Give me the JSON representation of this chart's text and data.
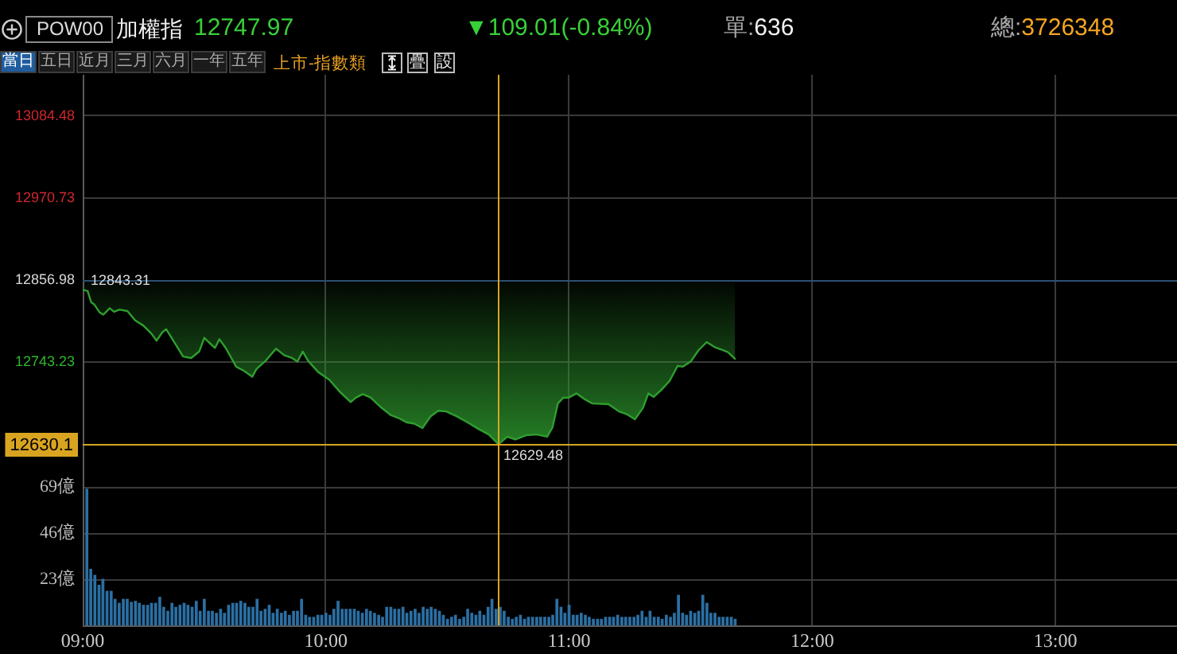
{
  "chart_data": [
    {
      "type": "other",
      "title": "加權指",
      "annotations": [
        "POW00",
        "12747.97",
        "▼109.01(-0.84%)",
        "單:636",
        "總:3726348",
        "當日",
        "五日",
        "近月",
        "三月",
        "六月",
        "一年",
        "五年",
        "上市-指數類",
        "疊",
        "設"
      ]
    },
    {
      "type": "line",
      "x": [
        9,
        9.02,
        9.035,
        9.048,
        9.07,
        9.085,
        9.111,
        9.129,
        9.151,
        9.184,
        9.216,
        9.249,
        9.282,
        9.304,
        9.326,
        9.343,
        9.369,
        9.413,
        9.446,
        9.479,
        9.5,
        9.518,
        9.544,
        9.562,
        9.588,
        9.631,
        9.664,
        9.697,
        9.715,
        9.752,
        9.795,
        9.828,
        9.861,
        9.883,
        9.905,
        9.927,
        9.97,
        10.014,
        10.058,
        10.102,
        10.123,
        10.152,
        10.185,
        10.222,
        10.266,
        10.298,
        10.331,
        10.364,
        10.397,
        10.43,
        10.462,
        10.495,
        10.539,
        10.582,
        10.626,
        10.67,
        10.71,
        10.746,
        10.779,
        10.823,
        10.867,
        10.91,
        10.932,
        10.954,
        10.976,
        10.998,
        11.031,
        11.064,
        11.096,
        11.162,
        11.205,
        11.238,
        11.271,
        11.304,
        11.326,
        11.348,
        11.38,
        11.413,
        11.446,
        11.468,
        11.5,
        11.533,
        11.566,
        11.599,
        11.631,
        11.653,
        11.682
      ],
      "series": [
        {
          "color": "#2f9e2f",
          "values": [
            12843.31,
            12842,
            12826,
            12823,
            12812,
            12809,
            12818,
            12813,
            12816,
            12814,
            12801,
            12794,
            12783,
            12773,
            12784,
            12789,
            12775,
            12751,
            12749,
            12758,
            12777,
            12771,
            12763,
            12775,
            12763,
            12737,
            12731,
            12723,
            12734,
            12745,
            12762,
            12753,
            12749,
            12744,
            12758,
            12745,
            12729,
            12719,
            12702,
            12688,
            12694,
            12699,
            12694,
            12682,
            12670,
            12666,
            12660,
            12658,
            12652,
            12668,
            12676,
            12675,
            12668,
            12660,
            12651,
            12643,
            12629.48,
            12640,
            12636,
            12642,
            12643,
            12640,
            12653,
            12686,
            12694,
            12694,
            12700,
            12692,
            12686,
            12685,
            12675,
            12671,
            12664,
            12680,
            12700,
            12695,
            12705,
            12717,
            12738,
            12737,
            12744,
            12760,
            12771,
            12764,
            12760,
            12757,
            12747.97
          ],
          "lower": [
            12843.31,
            12842,
            12826,
            12823,
            12812,
            12809,
            12818,
            12813,
            12816,
            12814,
            12801,
            12794,
            12783,
            12773,
            12784,
            12789,
            12775,
            12751,
            12749,
            12758,
            12777,
            12771,
            12763,
            12775,
            12763,
            12737,
            12731,
            12723,
            12734,
            12745,
            12762,
            12753,
            12749,
            12744,
            12758,
            12745,
            12729,
            12719,
            12702,
            12688,
            12694,
            12699,
            12694,
            12682,
            12670,
            12666,
            12660,
            12658,
            12652,
            12668,
            12676,
            12675,
            12668,
            12660,
            12651,
            12643,
            12629.48,
            12640,
            12636,
            12642,
            12643,
            12640,
            12653,
            12686,
            12694,
            12694,
            12700,
            12692,
            12686,
            12685,
            12675,
            12671,
            12664,
            12680,
            12700,
            12695,
            12705,
            12717,
            12738,
            12737,
            12744,
            12760,
            12771,
            12764,
            12760,
            12757,
            12747.97
          ],
          "upper": [
            12856.98,
            12856.98,
            12856.98,
            12856.98,
            12856.98,
            12856.98,
            12856.98,
            12856.98,
            12856.98,
            12856.98,
            12856.98,
            12856.98,
            12856.98,
            12856.98,
            12856.98,
            12856.98,
            12856.98,
            12856.98,
            12856.98,
            12856.98,
            12856.98,
            12856.98,
            12856.98,
            12856.98,
            12856.98,
            12856.98,
            12856.98,
            12856.98,
            12856.98,
            12856.98,
            12856.98,
            12856.98,
            12856.98,
            12856.98,
            12856.98,
            12856.98,
            12856.98,
            12856.98,
            12856.98,
            12856.98,
            12856.98,
            12856.98,
            12856.98,
            12856.98,
            12856.98,
            12856.98,
            12856.98,
            12856.98,
            12856.98,
            12856.98,
            12856.98,
            12856.98,
            12856.98,
            12856.98,
            12856.98,
            12856.98,
            12856.98,
            12856.98,
            12856.98,
            12856.98,
            12856.98,
            12856.98,
            12856.98,
            12856.98,
            12856.98,
            12856.98,
            12856.98,
            12856.98,
            12856.98,
            12856.98,
            12856.98,
            12856.98,
            12856.98,
            12856.98,
            12856.98,
            12856.98,
            12856.98,
            12856.98,
            12856.98,
            12856.98,
            12856.98,
            12856.98,
            12856.98,
            12856.98,
            12856.98,
            12856.98,
            12856.98
          ]
        }
      ],
      "xlim": [
        9,
        13.5
      ],
      "xticks": [
        9,
        10,
        11,
        12,
        13
      ],
      "ylim": [
        12572.6,
        13141.36
      ],
      "yticks": [
        13084.48,
        12970.73,
        12856.98,
        12743.23
      ],
      "grid": true,
      "tick_labels": "y",
      "ref_lines": [
        {
          "axis": "y",
          "value": 12856.98,
          "color": "#2b4f73"
        },
        {
          "axis": "y",
          "value": 12630.1,
          "label": "12630.1",
          "color": "#d9a521"
        },
        {
          "axis": "x",
          "value": 10.71,
          "color": "#d9a521"
        }
      ],
      "annotations": [
        {
          "text": "12843.31",
          "x": 9,
          "y": 12843.31
        },
        {
          "text": "12629.48",
          "x": 10.71,
          "y": 12629.48
        }
      ]
    },
    {
      "type": "bar",
      "color": "#2b6fa3",
      "x": [
        9.017,
        9.033,
        9.05,
        9.067,
        9.083,
        9.1,
        9.117,
        9.133,
        9.15,
        9.167,
        9.183,
        9.2,
        9.217,
        9.233,
        9.25,
        9.267,
        9.283,
        9.3,
        9.317,
        9.333,
        9.35,
        9.367,
        9.383,
        9.4,
        9.417,
        9.433,
        9.45,
        9.467,
        9.483,
        9.5,
        9.517,
        9.533,
        9.55,
        9.567,
        9.583,
        9.6,
        9.617,
        9.633,
        9.65,
        9.667,
        9.683,
        9.7,
        9.717,
        9.733,
        9.75,
        9.767,
        9.783,
        9.8,
        9.817,
        9.833,
        9.85,
        9.867,
        9.883,
        9.9,
        9.917,
        9.933,
        9.95,
        9.967,
        9.983,
        10,
        10.017,
        10.033,
        10.05,
        10.067,
        10.083,
        10.1,
        10.117,
        10.133,
        10.15,
        10.167,
        10.183,
        10.2,
        10.217,
        10.233,
        10.25,
        10.267,
        10.283,
        10.3,
        10.317,
        10.333,
        10.35,
        10.367,
        10.383,
        10.4,
        10.417,
        10.433,
        10.45,
        10.467,
        10.483,
        10.5,
        10.517,
        10.533,
        10.55,
        10.567,
        10.583,
        10.6,
        10.617,
        10.633,
        10.65,
        10.667,
        10.683,
        10.7,
        10.717,
        10.733,
        10.75,
        10.767,
        10.783,
        10.8,
        10.817,
        10.833,
        10.85,
        10.867,
        10.883,
        10.9,
        10.917,
        10.933,
        10.95,
        10.967,
        10.983,
        11,
        11.017,
        11.033,
        11.05,
        11.067,
        11.083,
        11.1,
        11.117,
        11.133,
        11.15,
        11.167,
        11.183,
        11.2,
        11.217,
        11.233,
        11.25,
        11.267,
        11.283,
        11.3,
        11.317,
        11.333,
        11.35,
        11.367,
        11.383,
        11.4,
        11.417,
        11.433,
        11.45,
        11.467,
        11.483,
        11.5,
        11.517,
        11.533,
        11.55,
        11.567,
        11.583,
        11.6,
        11.617,
        11.633,
        11.65,
        11.667,
        11.683
      ],
      "values": [
        68,
        28,
        25,
        20,
        23,
        17,
        17,
        13,
        11,
        13,
        13,
        11.5,
        12,
        11,
        10,
        10,
        11,
        11,
        14,
        9,
        7,
        11,
        9,
        10,
        11,
        10,
        9,
        12,
        7,
        13,
        7,
        7,
        6,
        8,
        6,
        10,
        11,
        11,
        12,
        11,
        9,
        9,
        13,
        7,
        8,
        10,
        6,
        8,
        6,
        7,
        5,
        7,
        7,
        13,
        5,
        4,
        4,
        5,
        5,
        6,
        5,
        8,
        12,
        8,
        8,
        8,
        8,
        7,
        6,
        8,
        7,
        6,
        5,
        4,
        9,
        9,
        8,
        8,
        9,
        6,
        7,
        8,
        6,
        9,
        8,
        9,
        8,
        7,
        5,
        3,
        4,
        5,
        3,
        4,
        8,
        6,
        5,
        7,
        5,
        9,
        13,
        8,
        9,
        7,
        4,
        3,
        4,
        5,
        3,
        4,
        4,
        4,
        4,
        4,
        4,
        5,
        13,
        9,
        6,
        10,
        5,
        5,
        6,
        5,
        4,
        3,
        3,
        3,
        4,
        4,
        4,
        5,
        4,
        4,
        4,
        4,
        5,
        7,
        4,
        7,
        4,
        4,
        3,
        5,
        4,
        6,
        15,
        6,
        5,
        7,
        6,
        7,
        15,
        11,
        6,
        6,
        4,
        4,
        4,
        4,
        3
      ],
      "xlim": [
        9,
        13.5
      ],
      "xticks": [
        {
          "value": 9,
          "label": "09:00"
        },
        {
          "value": 10,
          "label": "10:00"
        },
        {
          "value": 11,
          "label": "11:00"
        },
        {
          "value": 12,
          "label": "12:00"
        },
        {
          "value": 13,
          "label": "13:00"
        }
      ],
      "ylim": [
        0,
        70
      ],
      "yticks": [
        {
          "value": 23,
          "label": "23億"
        },
        {
          "value": 46,
          "label": "46億"
        },
        {
          "value": 69,
          "label": "69億"
        }
      ],
      "grid": true,
      "ref_lines": [
        {
          "axis": "x",
          "value": 10.71,
          "color": "#d9a521"
        }
      ]
    }
  ]
}
